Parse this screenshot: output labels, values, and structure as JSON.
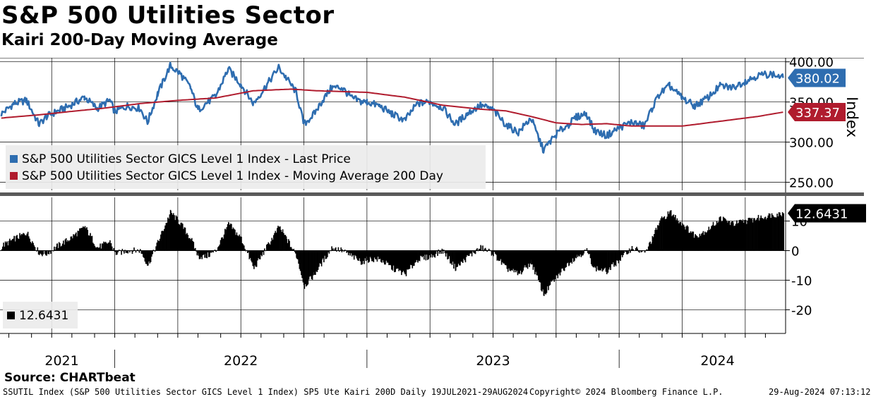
{
  "header": {
    "title": "S&P 500 Utilities Sector",
    "subtitle": "Kairi 200-Day Moving Average"
  },
  "footer": {
    "source": "Source: CHARTbeat",
    "ticker_info": "SSUTIL Index (S&P 500 Utilities Sector GICS Level 1 Index) SP5 Ute Kairi 200D  Daily 19JUL2021-29AUG2024",
    "copyright": "Copyright© 2024 Bloomberg Finance L.P.",
    "timestamp": "29-Aug-2024 07:13:12"
  },
  "colors": {
    "price": "#2e6db0",
    "ma": "#b01c2e",
    "kairi": "#000000",
    "grid": "#000000"
  },
  "chart_data": [
    {
      "type": "line",
      "panel": "upper",
      "ylabel": "Index",
      "ylim": [
        240,
        405
      ],
      "yticks": [
        "250.00",
        "300.00",
        "350.00",
        "400.00"
      ],
      "ytick_values": [
        250,
        300,
        350,
        400
      ],
      "x_range": [
        2021.545,
        2024.66
      ],
      "series": [
        {
          "name": "S&P 500 Utilities Sector GICS Level 1 Index - Last Price",
          "last_label": "380.02",
          "x": [
            2021.55,
            2021.6,
            2021.65,
            2021.7,
            2021.73,
            2021.77,
            2021.82,
            2021.88,
            2021.93,
            2021.98,
            2022.0,
            2022.05,
            2022.1,
            2022.13,
            2022.17,
            2022.22,
            2022.26,
            2022.3,
            2022.33,
            2022.36,
            2022.4,
            2022.45,
            2022.5,
            2022.55,
            2022.6,
            2022.65,
            2022.68,
            2022.72,
            2022.75,
            2022.79,
            2022.82,
            2022.86,
            2022.9,
            2022.94,
            2022.98,
            2023.0,
            2023.05,
            2023.1,
            2023.15,
            2023.2,
            2023.25,
            2023.3,
            2023.35,
            2023.4,
            2023.45,
            2023.5,
            2023.55,
            2023.6,
            2023.65,
            2023.7,
            2023.73,
            2023.76,
            2023.8,
            2023.83,
            2023.87,
            2023.9,
            2023.95,
            2024.0,
            2024.05,
            2024.1,
            2024.13,
            2024.16,
            2024.2,
            2024.25,
            2024.3,
            2024.35,
            2024.4,
            2024.45,
            2024.5,
            2024.55,
            2024.6,
            2024.65
          ],
          "y": [
            335,
            348,
            352,
            322,
            332,
            338,
            345,
            356,
            342,
            352,
            338,
            345,
            342,
            325,
            360,
            395,
            385,
            368,
            340,
            348,
            357,
            391,
            372,
            348,
            370,
            393,
            380,
            362,
            322,
            335,
            350,
            368,
            368,
            355,
            350,
            350,
            345,
            335,
            327,
            348,
            350,
            343,
            322,
            336,
            346,
            340,
            322,
            312,
            330,
            290,
            302,
            313,
            322,
            331,
            336,
            315,
            308,
            318,
            325,
            320,
            342,
            360,
            370,
            355,
            345,
            355,
            370,
            368,
            376,
            383,
            385,
            380.02
          ]
        },
        {
          "name": "S&P 500 Utilities Sector GICS Level 1 Index - Moving Average 200 Day",
          "last_label": "337.37",
          "x": [
            2021.55,
            2021.7,
            2021.85,
            2021.95,
            2022.1,
            2022.25,
            2022.4,
            2022.55,
            2022.7,
            2022.8,
            2022.9,
            2023.0,
            2023.15,
            2023.3,
            2023.45,
            2023.55,
            2023.65,
            2023.75,
            2023.85,
            2023.95,
            2024.05,
            2024.15,
            2024.25,
            2024.35,
            2024.45,
            2024.55,
            2024.65
          ],
          "y": [
            330,
            334,
            339,
            342,
            348,
            352,
            355,
            364,
            366,
            364,
            363,
            362,
            356,
            346,
            341,
            339,
            332,
            324,
            322,
            323,
            320,
            320,
            320,
            324,
            328,
            332,
            337.37
          ]
        }
      ]
    },
    {
      "type": "bar",
      "panel": "lower",
      "ylim": [
        -28,
        18
      ],
      "yticks": [
        "-20",
        "-10",
        "0",
        "10"
      ],
      "ytick_values": [
        -20,
        -10,
        0,
        10
      ],
      "x_range": [
        2021.545,
        2024.66
      ],
      "series": [
        {
          "name": "12.6431",
          "last_label": "12.6431",
          "x": [
            2021.55,
            2021.6,
            2021.65,
            2021.7,
            2021.73,
            2021.77,
            2021.82,
            2021.88,
            2021.93,
            2021.98,
            2022.0,
            2022.05,
            2022.1,
            2022.13,
            2022.17,
            2022.22,
            2022.26,
            2022.3,
            2022.33,
            2022.36,
            2022.4,
            2022.45,
            2022.5,
            2022.55,
            2022.6,
            2022.65,
            2022.68,
            2022.72,
            2022.75,
            2022.79,
            2022.82,
            2022.86,
            2022.9,
            2022.94,
            2022.98,
            2023.0,
            2023.05,
            2023.1,
            2023.15,
            2023.2,
            2023.25,
            2023.3,
            2023.35,
            2023.4,
            2023.45,
            2023.5,
            2023.55,
            2023.6,
            2023.65,
            2023.7,
            2023.73,
            2023.76,
            2023.8,
            2023.83,
            2023.87,
            2023.9,
            2023.95,
            2024.0,
            2024.05,
            2024.1,
            2024.13,
            2024.16,
            2024.2,
            2024.25,
            2024.3,
            2024.35,
            2024.4,
            2024.45,
            2024.5,
            2024.55,
            2024.6,
            2024.65
          ],
          "y": [
            1.5,
            4,
            6,
            -1,
            -1,
            1.5,
            4,
            8,
            1,
            3,
            -1,
            0,
            0,
            -5,
            3,
            13,
            9,
            4,
            -2,
            -2,
            0,
            9,
            4,
            -6,
            1,
            8,
            4,
            -2,
            -12,
            -8,
            -4,
            1,
            0,
            -2,
            -4,
            -3,
            -3,
            -6,
            -8,
            -3,
            -2,
            0,
            -6,
            -2,
            1,
            -1,
            -6,
            -8,
            -4,
            -15,
            -11,
            -8,
            -4,
            -2,
            0,
            -6,
            -7,
            -3,
            1,
            -1,
            4,
            10,
            13,
            9,
            5,
            7,
            11,
            9,
            10,
            11,
            12,
            12.64
          ]
        }
      ]
    },
    {
      "type": "table",
      "panel": "time-axis",
      "year_labels": [
        "2021",
        "2022",
        "2023",
        "2024"
      ],
      "year_label_x": [
        2021.79,
        2022.5,
        2023.5,
        2024.39
      ],
      "year_boundaries": [
        2022.0,
        2023.0,
        2024.0
      ],
      "month_ticks": [
        2021.58,
        2021.67,
        2021.75,
        2021.83,
        2021.92,
        2022.0,
        2022.08,
        2022.17,
        2022.25,
        2022.33,
        2022.42,
        2022.5,
        2022.58,
        2022.67,
        2022.75,
        2022.83,
        2022.92,
        2023.0,
        2023.08,
        2023.17,
        2023.25,
        2023.33,
        2023.42,
        2023.5,
        2023.58,
        2023.67,
        2023.75,
        2023.83,
        2023.92,
        2024.0,
        2024.08,
        2024.17,
        2024.25,
        2024.33,
        2024.42,
        2024.5,
        2024.58
      ]
    }
  ]
}
